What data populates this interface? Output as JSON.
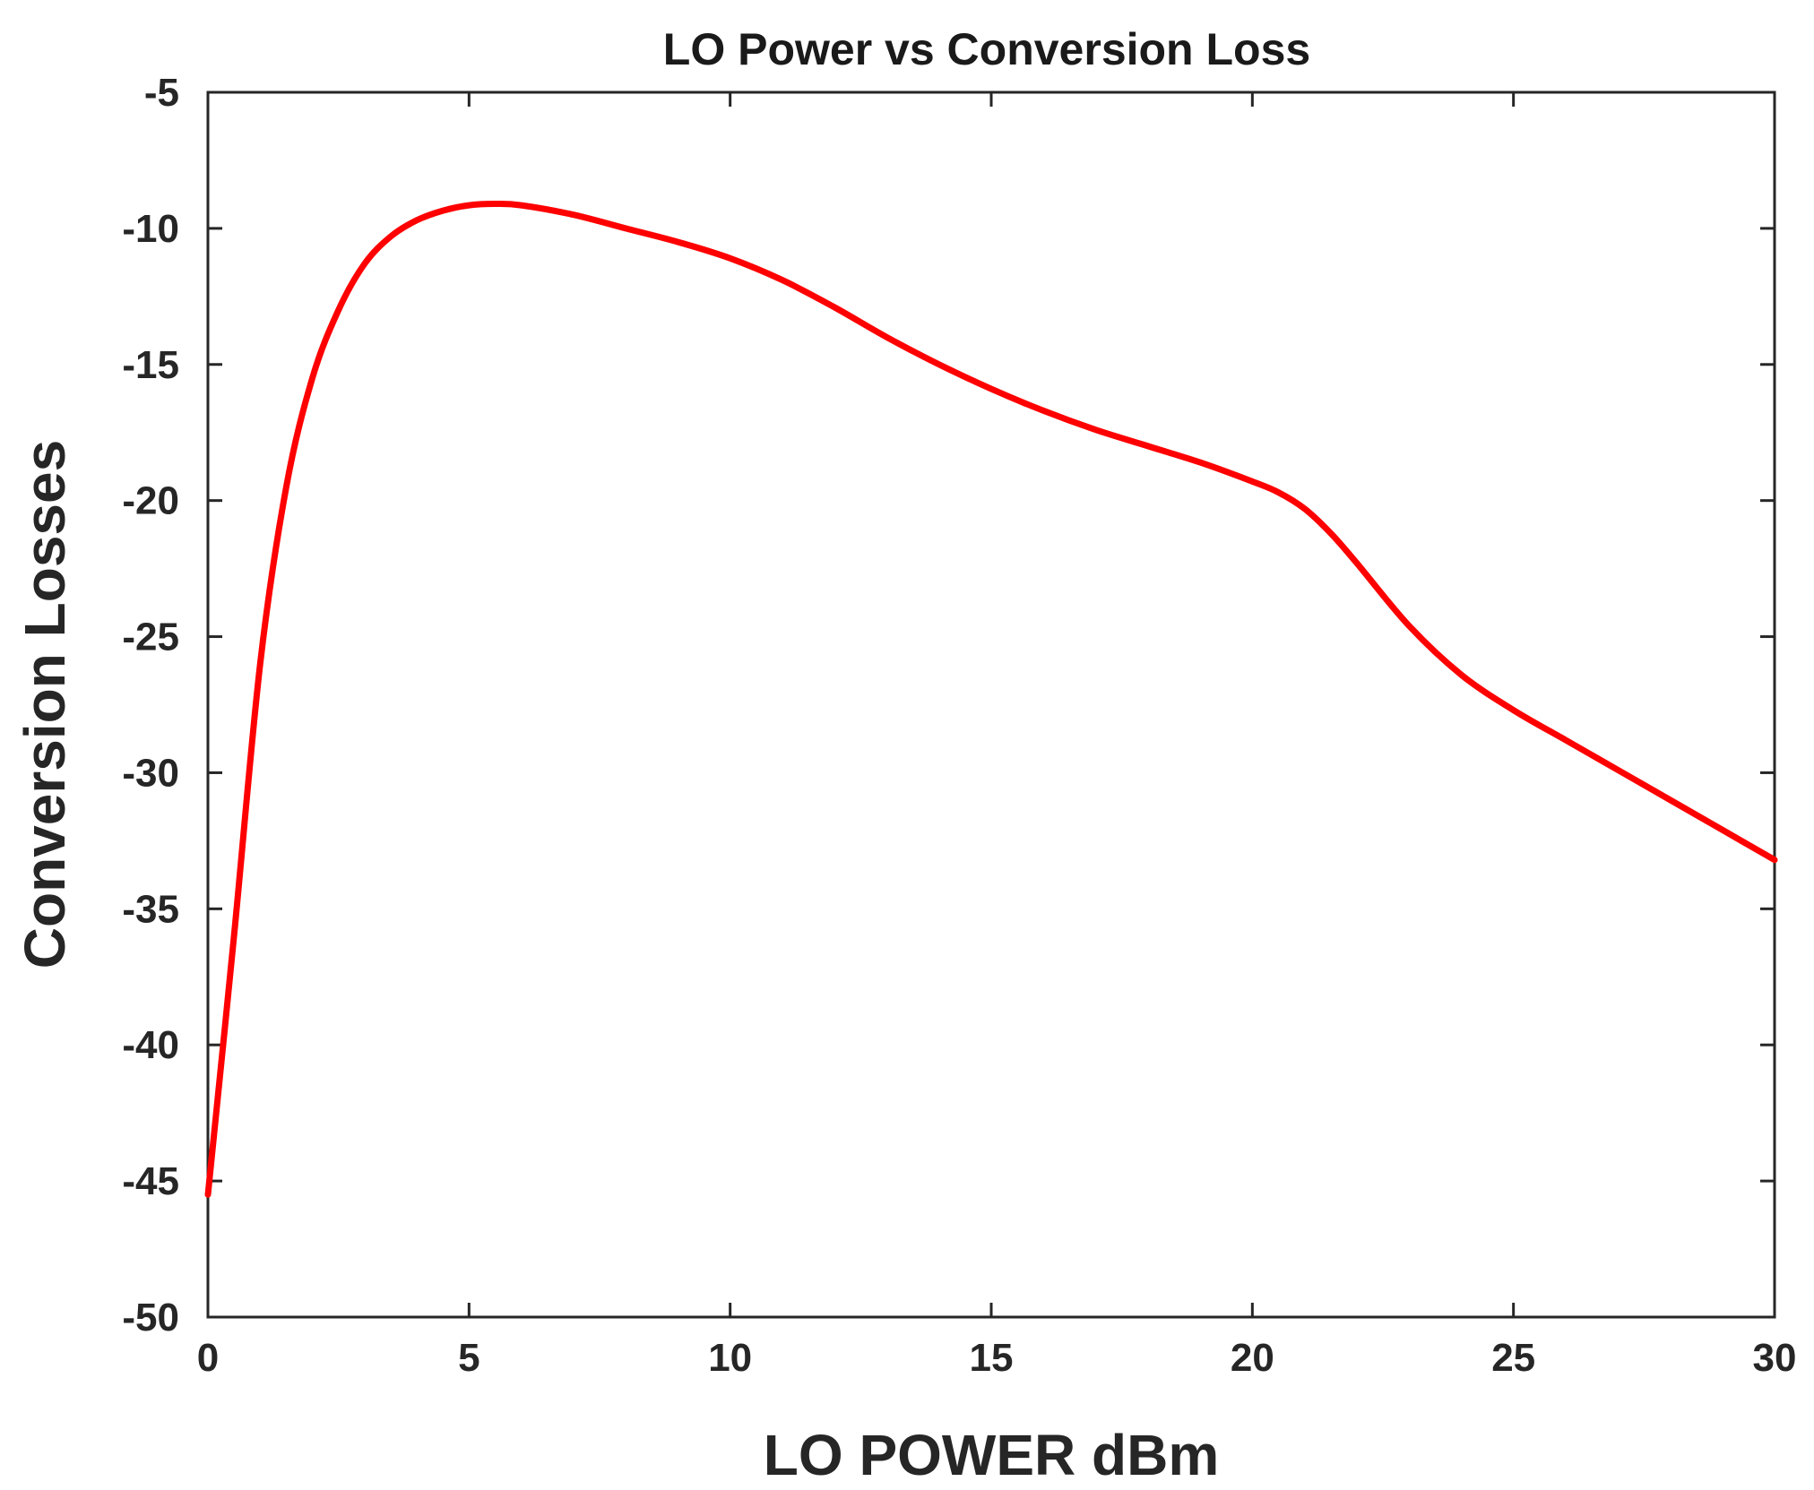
{
  "chart_data": {
    "type": "line",
    "title": "LO Power vs Conversion Loss",
    "xlabel": "LO POWER dBm",
    "ylabel": "Conversion Losses",
    "xlim": [
      0,
      30
    ],
    "ylim": [
      -50,
      -5
    ],
    "xticks": [
      0,
      5,
      10,
      15,
      20,
      25,
      30
    ],
    "yticks": [
      -50,
      -45,
      -40,
      -35,
      -30,
      -25,
      -20,
      -15,
      -10,
      -5
    ],
    "grid": false,
    "series": [
      {
        "name": "Conversion Loss",
        "color": "#ff0000",
        "x": [
          0,
          0.5,
          1,
          1.5,
          2,
          2.5,
          3,
          3.5,
          4,
          4.5,
          5,
          5.5,
          6,
          7,
          8,
          9,
          10,
          11,
          12,
          13,
          14,
          15,
          16,
          17,
          18,
          19,
          20,
          20.5,
          21,
          21.5,
          22,
          23,
          24,
          25,
          26,
          27,
          28,
          29,
          30
        ],
        "y": [
          -45.5,
          -36,
          -26,
          -19.5,
          -15.5,
          -13,
          -11.3,
          -10.3,
          -9.7,
          -9.35,
          -9.15,
          -9.1,
          -9.15,
          -9.5,
          -10,
          -10.5,
          -11.1,
          -11.9,
          -12.9,
          -14,
          -15,
          -15.9,
          -16.7,
          -17.4,
          -18,
          -18.6,
          -19.3,
          -19.7,
          -20.3,
          -21.2,
          -22.3,
          -24.6,
          -26.4,
          -27.7,
          -28.8,
          -29.9,
          -31,
          -32.1,
          -33.2
        ]
      }
    ]
  }
}
